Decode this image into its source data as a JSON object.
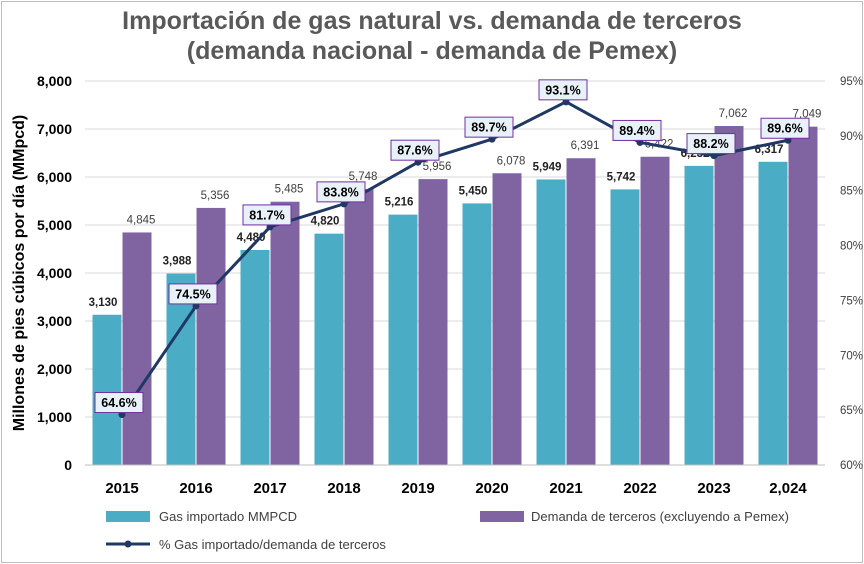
{
  "chart_data": {
    "type": "bar",
    "title_line1": "Importación de gas natural vs. demanda de terceros",
    "title_line2": "(demanda nacional - demanda de Pemex)",
    "ylabel": "Millones de pies cúbicos por día (MMpcd)",
    "categories": [
      "2015",
      "2016",
      "2017",
      "2018",
      "2019",
      "2020",
      "2021",
      "2022",
      "2023",
      "2,024"
    ],
    "ylim": [
      0,
      8000
    ],
    "y_ticks": [
      "0",
      "1,000",
      "2,000",
      "3,000",
      "4,000",
      "5,000",
      "6,000",
      "7,000",
      "8,000"
    ],
    "y2lim": [
      60,
      95
    ],
    "y2_ticks": [
      "60%",
      "65%",
      "70%",
      "75%",
      "80%",
      "85%",
      "90%",
      "95%"
    ],
    "series": [
      {
        "name": "Gas importado MMPCD",
        "type": "bar",
        "color": "#4bacc6",
        "values": [
          3130,
          3988,
          4480,
          4820,
          5216,
          5450,
          5949,
          5742,
          6232,
          6317
        ],
        "labels": [
          "3,130",
          "3,988",
          "4,480",
          "4,820",
          "5,216",
          "5,450",
          "5,949",
          "5,742",
          "6,232",
          "6,317"
        ]
      },
      {
        "name": "Demanda de terceros (excluyendo a Pemex)",
        "type": "bar",
        "color": "#8064a2",
        "values": [
          4845,
          5356,
          5485,
          5748,
          5956,
          6078,
          6391,
          6422,
          7062,
          7049
        ],
        "labels": [
          "4,845",
          "5,356",
          "5,485",
          "5,748",
          "5,956",
          "6,078",
          "6,391",
          "6,422",
          "7,062",
          "7,049"
        ]
      },
      {
        "name": "% Gas importado/demanda de terceros",
        "type": "line",
        "axis": "right",
        "color": "#1f3864",
        "values": [
          64.6,
          74.5,
          81.7,
          83.8,
          87.6,
          89.7,
          93.1,
          89.4,
          88.2,
          89.6
        ],
        "labels": [
          "64.6%",
          "74.5%",
          "81.7%",
          "83.8%",
          "87.6%",
          "89.7%",
          "93.1%",
          "89.4%",
          "88.2%",
          "89.6%"
        ]
      }
    ],
    "grid": true,
    "legend_position": "bottom"
  }
}
